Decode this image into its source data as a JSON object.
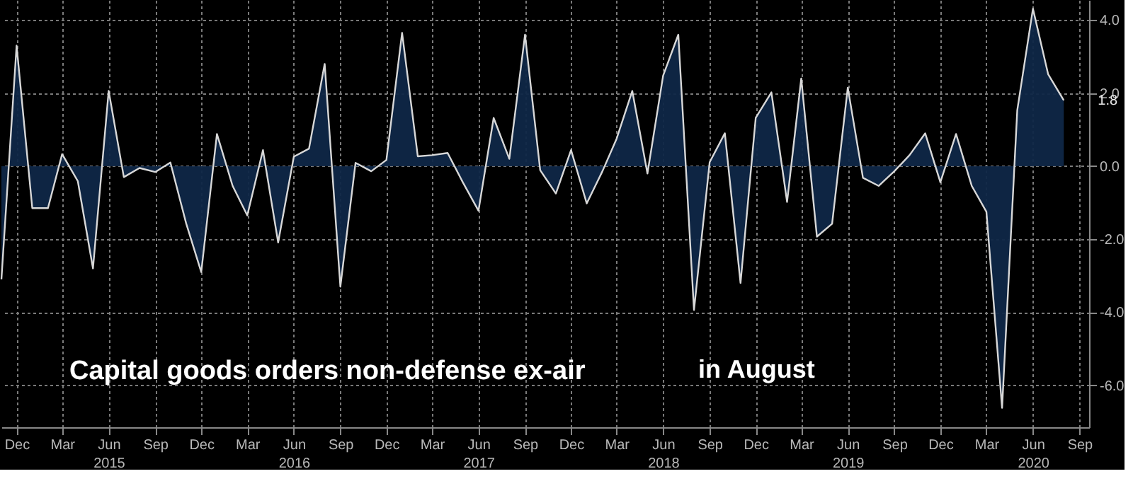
{
  "chart_data": {
    "type": "area",
    "x": [
      "2014-11",
      "2014-12",
      "2015-01",
      "2015-02",
      "2015-03",
      "2015-04",
      "2015-05",
      "2015-06",
      "2015-07",
      "2015-08",
      "2015-09",
      "2015-10",
      "2015-11",
      "2015-12",
      "2016-01",
      "2016-02",
      "2016-03",
      "2016-04",
      "2016-05",
      "2016-06",
      "2016-07",
      "2016-08",
      "2016-09",
      "2016-10",
      "2016-11",
      "2016-12",
      "2017-01",
      "2017-02",
      "2017-03",
      "2017-04",
      "2017-05",
      "2017-06",
      "2017-07",
      "2017-08",
      "2017-09",
      "2017-10",
      "2017-11",
      "2017-12",
      "2018-01",
      "2018-02",
      "2018-03",
      "2018-04",
      "2018-05",
      "2018-06",
      "2018-07",
      "2018-08",
      "2018-09",
      "2018-10",
      "2018-11",
      "2018-12",
      "2019-01",
      "2019-02",
      "2019-03",
      "2019-04",
      "2019-05",
      "2019-06",
      "2019-07",
      "2019-08",
      "2019-09",
      "2019-10",
      "2019-11",
      "2019-12",
      "2020-01",
      "2020-02",
      "2020-03",
      "2020-04",
      "2020-05",
      "2020-06",
      "2020-07",
      "2020-08"
    ],
    "series": [
      {
        "color": "#0f2747",
        "values": [
          -3.1,
          3.3,
          -1.15,
          -1.15,
          0.33,
          -0.41,
          -2.8,
          2.06,
          -0.3,
          -0.05,
          -0.16,
          0.1,
          -1.56,
          -2.9,
          0.88,
          -0.54,
          -1.35,
          0.44,
          -2.09,
          0.26,
          0.48,
          2.8,
          -3.3,
          0.09,
          -0.14,
          0.17,
          3.65,
          0.27,
          0.3,
          0.36,
          -0.44,
          -1.22,
          1.32,
          0.2,
          3.6,
          -0.11,
          -0.75,
          0.44,
          -1.02,
          -0.14,
          0.75,
          2.06,
          -0.2,
          2.48,
          3.6,
          -3.94,
          0.11,
          0.9,
          -3.2,
          1.32,
          2.02,
          -0.98,
          2.4,
          -1.93,
          -1.58,
          2.15,
          -0.32,
          -0.54,
          -0.14,
          0.3,
          0.9,
          -0.44,
          0.88,
          -0.54,
          -1.25,
          -6.62,
          1.53,
          4.31,
          2.52,
          1.8
        ]
      }
    ],
    "xlim": [
      "2014-11",
      "2020-09-20"
    ],
    "xticks": [
      {
        "value": "2014-12",
        "label": "Dec"
      },
      {
        "value": "2015-03",
        "label": "Mar"
      },
      {
        "value": "2015-06",
        "label": "Jun\n2015"
      },
      {
        "value": "2015-09",
        "label": "Sep"
      },
      {
        "value": "2015-12",
        "label": "Dec"
      },
      {
        "value": "2016-03",
        "label": "Mar"
      },
      {
        "value": "2016-06",
        "label": "Jun\n2016"
      },
      {
        "value": "2016-09",
        "label": "Sep"
      },
      {
        "value": "2016-12",
        "label": "Dec"
      },
      {
        "value": "2017-03",
        "label": "Mar"
      },
      {
        "value": "2017-06",
        "label": "Jun\n2017"
      },
      {
        "value": "2017-09",
        "label": "Sep"
      },
      {
        "value": "2017-12",
        "label": "Dec"
      },
      {
        "value": "2018-03",
        "label": "Mar"
      },
      {
        "value": "2018-06",
        "label": "Jun\n2018"
      },
      {
        "value": "2018-09",
        "label": "Sep"
      },
      {
        "value": "2018-12",
        "label": "Dec"
      },
      {
        "value": "2019-03",
        "label": "Mar"
      },
      {
        "value": "2019-06",
        "label": "Jun\n2019"
      },
      {
        "value": "2019-09",
        "label": "Sep"
      },
      {
        "value": "2019-12",
        "label": "Dec"
      },
      {
        "value": "2020-03",
        "label": "Mar"
      },
      {
        "value": "2020-06",
        "label": "Jun\n2020"
      },
      {
        "value": "2020-09",
        "label": "Sep"
      }
    ],
    "ylim": [
      -7.15,
      4.55
    ],
    "yticks": [
      {
        "value": -6,
        "label": "-6.0"
      },
      {
        "value": -4,
        "label": "-4.0"
      },
      {
        "value": -2,
        "label": "-2.0"
      },
      {
        "value": 0,
        "label": "0.0"
      },
      {
        "value": 2,
        "label": "2.0"
      },
      {
        "value": 4,
        "label": "4.0"
      }
    ],
    "grid": true,
    "annotations": [
      "Capital goods orders non-defense ex-air",
      "in August",
      {
        "text": "1.8",
        "x": "2020-08",
        "y": 1.8
      }
    ]
  }
}
